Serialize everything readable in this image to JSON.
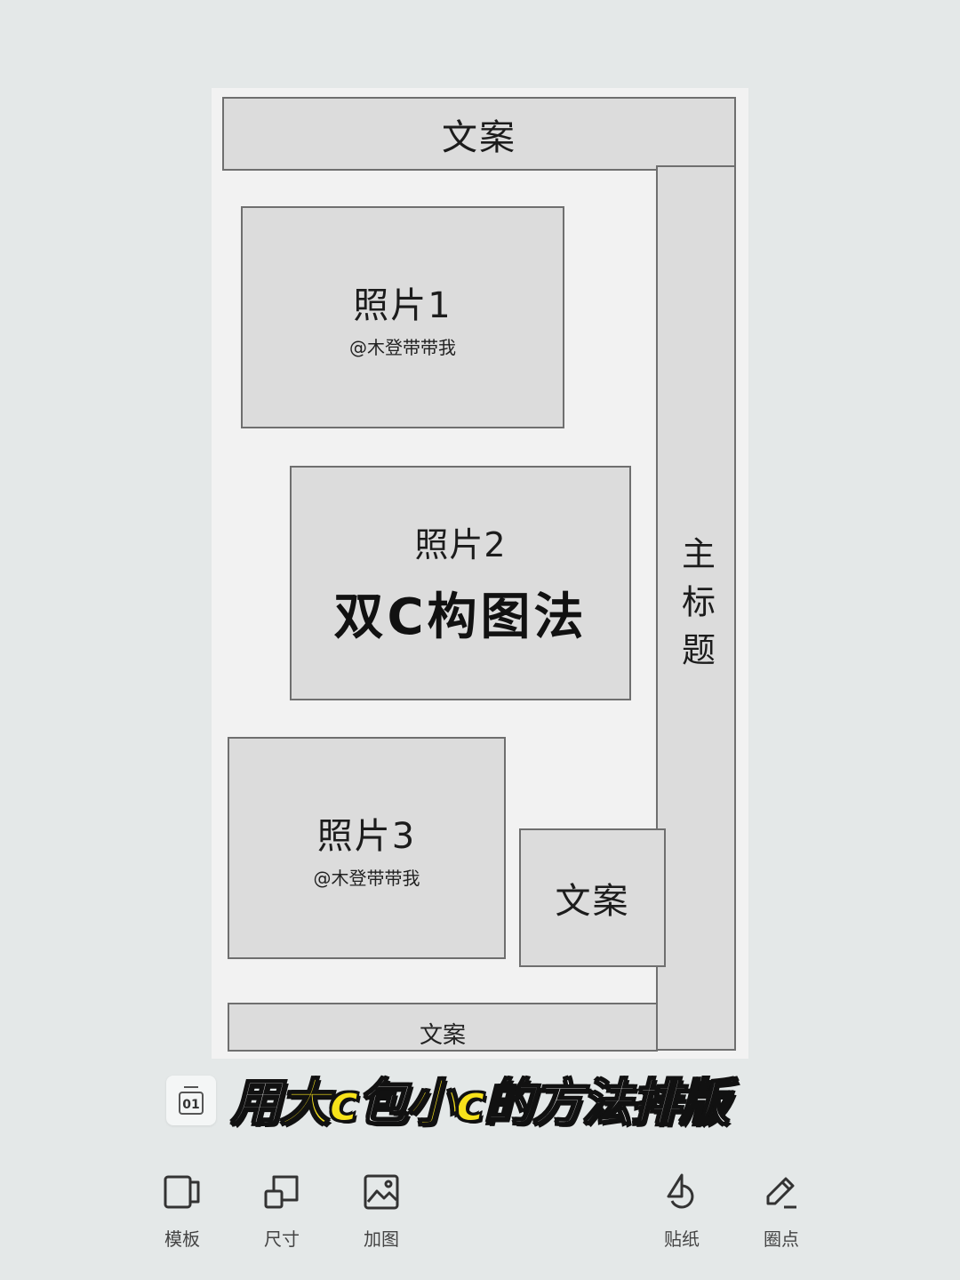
{
  "canvas": {
    "top_copy": "文案",
    "main_title": "主标题",
    "photo1": {
      "label": "照片1",
      "credit": "@木登带带我"
    },
    "photo2": {
      "label": "照片2",
      "title": "双C构图法"
    },
    "photo3": {
      "label": "照片3",
      "credit": "@木登带带我"
    },
    "side_copy": "文案",
    "bottom_copy": "文案"
  },
  "subtitle": {
    "parts": [
      "用",
      "大c",
      "包",
      "小c",
      "的方法排版"
    ]
  },
  "page_chip": {
    "number": "01"
  },
  "toolbar": {
    "items": [
      {
        "label": "模板",
        "icon": "template-icon"
      },
      {
        "label": "尺寸",
        "icon": "size-icon"
      },
      {
        "label": "加图",
        "icon": "add-image-icon"
      },
      {
        "label": "贴纸",
        "icon": "sticker-icon"
      },
      {
        "label": "圈点",
        "icon": "annotate-icon"
      }
    ]
  }
}
